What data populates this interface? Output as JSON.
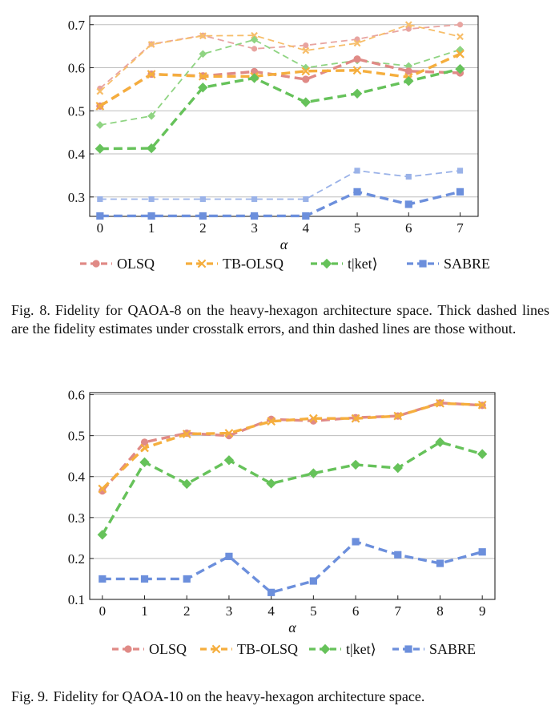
{
  "chart_data": [
    {
      "type": "line",
      "xlabel": "α",
      "x": [
        0,
        1,
        2,
        3,
        4,
        5,
        6,
        7
      ],
      "xlim": [
        -0.2,
        7.35
      ],
      "ylim": [
        0.255,
        0.72
      ],
      "yticks": [
        0.3,
        0.4,
        0.5,
        0.6,
        0.7
      ],
      "ytick_labels": [
        "0.3",
        "0.4",
        "0.5",
        "0.6",
        "0.7"
      ],
      "xtick_labels": [
        "0",
        "1",
        "2",
        "3",
        "4",
        "5",
        "6",
        "7"
      ],
      "grid": "horizontal",
      "legend_position": "bottom",
      "series": [
        {
          "name": "OLSQ",
          "style": "thick",
          "color": "#e08a86",
          "marker": "circle",
          "values": [
            0.511,
            0.585,
            0.581,
            0.591,
            0.573,
            0.62,
            0.592,
            0.588
          ]
        },
        {
          "name": "TB-OLSQ",
          "style": "thick",
          "color": "#f5ae3d",
          "marker": "x",
          "values": [
            0.511,
            0.585,
            0.58,
            0.58,
            0.592,
            0.594,
            0.578,
            0.632
          ]
        },
        {
          "name": "t|ket⟩",
          "style": "thick",
          "color": "#66c25a",
          "marker": "diamond",
          "values": [
            0.412,
            0.413,
            0.554,
            0.576,
            0.52,
            0.54,
            0.569,
            0.597
          ]
        },
        {
          "name": "SABRE",
          "style": "thick",
          "color": "#6c8fdc",
          "marker": "square",
          "values": [
            0.256,
            0.256,
            0.256,
            0.256,
            0.256,
            0.312,
            0.283,
            0.312
          ]
        },
        {
          "name": "OLSQ",
          "style": "thin",
          "color": "#e8a4a0",
          "marker": "circle",
          "values": [
            0.552,
            0.655,
            0.675,
            0.644,
            0.652,
            0.666,
            0.69,
            0.7
          ]
        },
        {
          "name": "TB-OLSQ",
          "style": "thin",
          "color": "#f7be6a",
          "marker": "x",
          "values": [
            0.545,
            0.654,
            0.674,
            0.675,
            0.64,
            0.657,
            0.7,
            0.672
          ]
        },
        {
          "name": "t|ket⟩",
          "style": "thin",
          "color": "#8fd482",
          "marker": "diamond",
          "values": [
            0.467,
            0.488,
            0.632,
            0.665,
            0.6,
            0.617,
            0.604,
            0.642
          ]
        },
        {
          "name": "SABRE",
          "style": "thin",
          "color": "#9ab2e8",
          "marker": "square",
          "values": [
            0.295,
            0.295,
            0.295,
            0.295,
            0.295,
            0.361,
            0.347,
            0.361
          ]
        }
      ],
      "legend": [
        "OLSQ",
        "TB-OLSQ",
        "t|ket⟩",
        "SABRE"
      ]
    },
    {
      "type": "line",
      "xlabel": "α",
      "x": [
        0,
        1,
        2,
        3,
        4,
        5,
        6,
        7,
        8,
        9
      ],
      "xlim": [
        -0.3,
        9.3
      ],
      "ylim": [
        0.1,
        0.605
      ],
      "yticks": [
        0.1,
        0.2,
        0.3,
        0.4,
        0.5,
        0.6
      ],
      "ytick_labels": [
        "0.1",
        "0.2",
        "0.3",
        "0.4",
        "0.5",
        "0.6"
      ],
      "xtick_labels": [
        "0",
        "1",
        "2",
        "3",
        "4",
        "5",
        "6",
        "7",
        "8",
        "9"
      ],
      "grid": "horizontal",
      "legend_position": "bottom",
      "series": [
        {
          "name": "OLSQ",
          "style": "thick",
          "color": "#e08a86",
          "marker": "circle",
          "values": [
            0.365,
            0.484,
            0.506,
            0.5,
            0.54,
            0.536,
            0.544,
            0.548,
            0.58,
            0.574
          ]
        },
        {
          "name": "TB-OLSQ",
          "style": "thick",
          "color": "#f5ae3d",
          "marker": "x",
          "values": [
            0.37,
            0.47,
            0.504,
            0.506,
            0.535,
            0.542,
            0.542,
            0.548,
            0.579,
            0.575
          ]
        },
        {
          "name": "t|ket⟩",
          "style": "thick",
          "color": "#66c25a",
          "marker": "diamond",
          "values": [
            0.258,
            0.435,
            0.382,
            0.44,
            0.383,
            0.408,
            0.429,
            0.421,
            0.484,
            0.455
          ]
        },
        {
          "name": "SABRE",
          "style": "thick",
          "color": "#6c8fdc",
          "marker": "square",
          "values": [
            0.15,
            0.15,
            0.15,
            0.205,
            0.117,
            0.145,
            0.241,
            0.209,
            0.188,
            0.216
          ]
        }
      ],
      "legend": [
        "OLSQ",
        "TB-OLSQ",
        "t|ket⟩",
        "SABRE"
      ]
    }
  ],
  "captions": [
    {
      "label": "Fig. 8.",
      "text": "Fidelity for QAOA-8 on the heavy-hexagon architecture space. Thick dashed lines are the fidelity estimates under crosstalk errors, and thin dashed lines are those without."
    },
    {
      "label": "Fig. 9.",
      "text": "Fidelity for QAOA-10 on the heavy-hexagon architecture space."
    }
  ]
}
